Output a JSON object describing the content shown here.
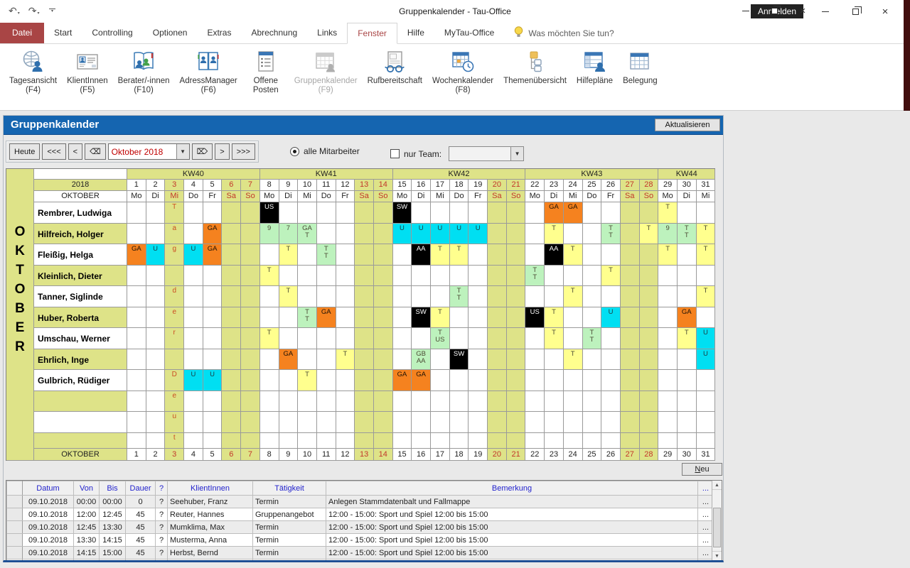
{
  "titlebar": {
    "title": "Gruppenkalender  -  Tau-Office",
    "anmelden_label": "Anmelden"
  },
  "tabs": {
    "file_label": "Datei",
    "items": [
      "Start",
      "Controlling",
      "Optionen",
      "Extras",
      "Abrechnung",
      "Links",
      "Fenster",
      "Hilfe",
      "MyTau-Office"
    ],
    "active": "Fenster",
    "help_prompt": "Was möchten Sie tun?"
  },
  "ribbon": {
    "items": [
      {
        "label": "Tagesansicht",
        "sub": "(F4)",
        "icon": "globe-person-icon"
      },
      {
        "label": "KlientInnen",
        "sub": "(F5)",
        "icon": "id-card-icon"
      },
      {
        "label": "Berater/-innen",
        "sub": "(F10)",
        "icon": "book-people-icon"
      },
      {
        "label": "AdressManager",
        "sub": "(F6)",
        "icon": "address-book-icon"
      },
      {
        "label": "Offene Posten",
        "sub": "",
        "icon": "list-document-icon",
        "wrap": true
      },
      {
        "label": "Gruppenkalender",
        "sub": "(F9)",
        "icon": "calendar-person-icon",
        "disabled": true
      },
      {
        "label": "Rufbereitschaft",
        "sub": "",
        "icon": "glasses-document-icon"
      },
      {
        "label": "Wochenkalender",
        "sub": "(F8)",
        "icon": "calendar-clock-icon"
      },
      {
        "label": "Themenübersicht",
        "sub": "",
        "icon": "org-chart-icon"
      },
      {
        "label": "Hilfepläne",
        "sub": "",
        "icon": "table-person-icon"
      },
      {
        "label": "Belegung",
        "sub": "",
        "icon": "table-grid-icon"
      }
    ]
  },
  "panel": {
    "title": "Gruppenkalender",
    "refresh_label": "Aktualisieren"
  },
  "toolbar": {
    "today_label": "Heute",
    "back_fast": "<<<",
    "back": "<",
    "del_back": "⌫",
    "period_value": "Oktober 2018",
    "del_fwd": "⌦",
    "fwd": ">",
    "fwd_fast": ">>>",
    "all_staff_label": "alle Mitarbeiter",
    "team_label": "nur Team:",
    "team_value": ""
  },
  "calendar": {
    "vertical_month": "OKTOBER",
    "year_label": "2018",
    "month_label": "OKTOBER",
    "footer_label": "OKTOBER",
    "new_button_label": "Neu",
    "kw_headers": [
      {
        "label": "KW40",
        "span": 7
      },
      {
        "label": "KW41",
        "span": 7
      },
      {
        "label": "KW42",
        "span": 7
      },
      {
        "label": "KW43",
        "span": 7
      },
      {
        "label": "KW44",
        "span": 3
      }
    ],
    "days": [
      1,
      2,
      3,
      4,
      5,
      6,
      7,
      8,
      9,
      10,
      11,
      12,
      13,
      14,
      15,
      16,
      17,
      18,
      19,
      20,
      21,
      22,
      23,
      24,
      25,
      26,
      27,
      28,
      29,
      30,
      31
    ],
    "dow": [
      "Mo",
      "Di",
      "Mi",
      "Do",
      "Fr",
      "Sa",
      "So",
      "Mo",
      "Di",
      "Mi",
      "Do",
      "Fr",
      "Sa",
      "So",
      "Mo",
      "Di",
      "Mi",
      "Do",
      "Fr",
      "Sa",
      "So",
      "Mo",
      "Di",
      "Mi",
      "Do",
      "Fr",
      "Sa",
      "So",
      "Mo",
      "Di",
      "Mi"
    ],
    "weekend_cols": [
      6,
      7,
      13,
      14,
      20,
      21,
      27,
      28
    ],
    "holiday_cols": [
      3
    ],
    "holiday_letters": [
      "T",
      "a",
      "g",
      "",
      "d",
      "e",
      "r",
      "",
      "D",
      "e",
      "u",
      "t"
    ],
    "cell_colors": {
      "yellow": "#ffff8e",
      "green": "#bdf2bd",
      "cyan": "#00dff2",
      "orange": "#f5821f",
      "black": "#000000"
    },
    "rows": [
      {
        "name": "Rembrer, Ludwiga",
        "cells": [
          {
            "c": 8,
            "t": "US",
            "k": "black"
          },
          {
            "c": 15,
            "t": "SW",
            "k": "black"
          },
          {
            "c": 23,
            "t": "GA",
            "k": "orange"
          },
          {
            "c": 24,
            "t": "GA",
            "k": "orange"
          },
          {
            "c": 29,
            "t": "T",
            "k": "yellow"
          }
        ]
      },
      {
        "name": "Hilfreich, Holger",
        "cells": [
          {
            "c": 5,
            "t": "GA",
            "k": "orange"
          },
          {
            "c": 8,
            "t": "9",
            "k": "green"
          },
          {
            "c": 9,
            "t": "7",
            "k": "green"
          },
          {
            "c": 10,
            "t": "GA\nT",
            "k": "green"
          },
          {
            "c": 15,
            "t": "U",
            "k": "cyan"
          },
          {
            "c": 16,
            "t": "U",
            "k": "cyan"
          },
          {
            "c": 17,
            "t": "U",
            "k": "cyan"
          },
          {
            "c": 18,
            "t": "U",
            "k": "cyan"
          },
          {
            "c": 19,
            "t": "U",
            "k": "cyan"
          },
          {
            "c": 23,
            "t": "T",
            "k": "yellow"
          },
          {
            "c": 26,
            "t": "T\nT",
            "k": "green"
          },
          {
            "c": 28,
            "t": "T",
            "k": "yellow"
          },
          {
            "c": 29,
            "t": "9",
            "k": "green"
          },
          {
            "c": 30,
            "t": "T\nT",
            "k": "green"
          },
          {
            "c": 31,
            "t": "T",
            "k": "yellow"
          }
        ]
      },
      {
        "name": "Fleißig, Helga",
        "cells": [
          {
            "c": 1,
            "t": "GA",
            "k": "orange"
          },
          {
            "c": 2,
            "t": "U",
            "k": "cyan"
          },
          {
            "c": 4,
            "t": "U",
            "k": "cyan"
          },
          {
            "c": 5,
            "t": "GA",
            "k": "orange"
          },
          {
            "c": 9,
            "t": "T",
            "k": "yellow"
          },
          {
            "c": 11,
            "t": "T\nT",
            "k": "green"
          },
          {
            "c": 16,
            "t": "AA",
            "k": "black"
          },
          {
            "c": 17,
            "t": "T",
            "k": "yellow"
          },
          {
            "c": 18,
            "t": "T",
            "k": "yellow"
          },
          {
            "c": 23,
            "t": "AA",
            "k": "black"
          },
          {
            "c": 24,
            "t": "T",
            "k": "yellow"
          },
          {
            "c": 29,
            "t": "T",
            "k": "yellow"
          },
          {
            "c": 31,
            "t": "T",
            "k": "yellow"
          }
        ]
      },
      {
        "name": "Kleinlich, Dieter",
        "cells": [
          {
            "c": 8,
            "t": "T",
            "k": "yellow"
          },
          {
            "c": 22,
            "t": "T\nT",
            "k": "green"
          },
          {
            "c": 26,
            "t": "T",
            "k": "yellow"
          }
        ]
      },
      {
        "name": "Tanner, Siglinde",
        "cells": [
          {
            "c": 9,
            "t": "T",
            "k": "yellow"
          },
          {
            "c": 18,
            "t": "T\nT",
            "k": "green"
          },
          {
            "c": 24,
            "t": "T",
            "k": "yellow"
          },
          {
            "c": 31,
            "t": "T",
            "k": "yellow"
          }
        ]
      },
      {
        "name": "Huber, Roberta",
        "cells": [
          {
            "c": 10,
            "t": "T\nT",
            "k": "green"
          },
          {
            "c": 11,
            "t": "GA",
            "k": "orange"
          },
          {
            "c": 16,
            "t": "SW",
            "k": "black"
          },
          {
            "c": 17,
            "t": "T",
            "k": "yellow"
          },
          {
            "c": 22,
            "t": "US",
            "k": "black"
          },
          {
            "c": 23,
            "t": "T",
            "k": "yellow"
          },
          {
            "c": 26,
            "t": "U",
            "k": "cyan"
          },
          {
            "c": 30,
            "t": "GA",
            "k": "orange"
          }
        ]
      },
      {
        "name": "Umschau, Werner",
        "cells": [
          {
            "c": 8,
            "t": "T",
            "k": "yellow"
          },
          {
            "c": 17,
            "t": "T\nUS",
            "k": "green"
          },
          {
            "c": 23,
            "t": "T",
            "k": "yellow"
          },
          {
            "c": 25,
            "t": "T\nT",
            "k": "green"
          },
          {
            "c": 30,
            "t": "T",
            "k": "yellow"
          },
          {
            "c": 31,
            "t": "U",
            "k": "cyan"
          }
        ]
      },
      {
        "name": "Ehrlich, Inge",
        "cells": [
          {
            "c": 9,
            "t": "GA",
            "k": "orange"
          },
          {
            "c": 12,
            "t": "T",
            "k": "yellow"
          },
          {
            "c": 16,
            "t": "GB\nAA",
            "k": "green"
          },
          {
            "c": 18,
            "t": "SW",
            "k": "black"
          },
          {
            "c": 24,
            "t": "T",
            "k": "yellow"
          },
          {
            "c": 31,
            "t": "U",
            "k": "cyan"
          }
        ]
      },
      {
        "name": "Gulbrich, Rüdiger",
        "cells": [
          {
            "c": 4,
            "t": "U",
            "k": "cyan"
          },
          {
            "c": 5,
            "t": "U",
            "k": "cyan"
          },
          {
            "c": 10,
            "t": "T",
            "k": "yellow"
          },
          {
            "c": 15,
            "t": "GA",
            "k": "orange"
          },
          {
            "c": 16,
            "t": "GA",
            "k": "orange"
          }
        ]
      },
      {
        "name": "",
        "cells": []
      },
      {
        "name": "",
        "cells": []
      },
      {
        "name": "",
        "cells": []
      }
    ]
  },
  "appointments": {
    "headers": [
      "Datum",
      "Von",
      "Bis",
      "Dauer",
      "?",
      "KlientInnen",
      "Tätigkeit",
      "Bemerkung"
    ],
    "action_header": "...",
    "action_label": "...",
    "rows": [
      [
        "09.10.2018",
        "00:00",
        "00:00",
        "0",
        "?",
        "Seehuber, Franz",
        "Termin",
        "Anlegen Stammdatenbalt und Fallmappe"
      ],
      [
        "09.10.2018",
        "12:00",
        "12:45",
        "45",
        "?",
        "Reuter, Hannes",
        "Gruppenangebot",
        "12:00 - 15:00: Sport und Spiel 12:00 bis 15:00"
      ],
      [
        "09.10.2018",
        "12:45",
        "13:30",
        "45",
        "?",
        "Mumklima, Max",
        "Termin",
        "12:00 - 15:00: Sport und Spiel 12:00 bis 15:00"
      ],
      [
        "09.10.2018",
        "13:30",
        "14:15",
        "45",
        "?",
        "Musterma, Anna",
        "Termin",
        "12:00 - 15:00: Sport und Spiel 12:00 bis 15:00"
      ],
      [
        "09.10.2018",
        "14:15",
        "15:00",
        "45",
        "?",
        "Herbst, Bernd",
        "Termin",
        "12:00 - 15:00: Sport und Spiel 12:00 bis 15:00"
      ]
    ]
  },
  "colors": {
    "accent_red": "#a94545",
    "panel_blue": "#1565b0",
    "zebra_green": "#dee388",
    "holiday_red": "#c2372a"
  }
}
